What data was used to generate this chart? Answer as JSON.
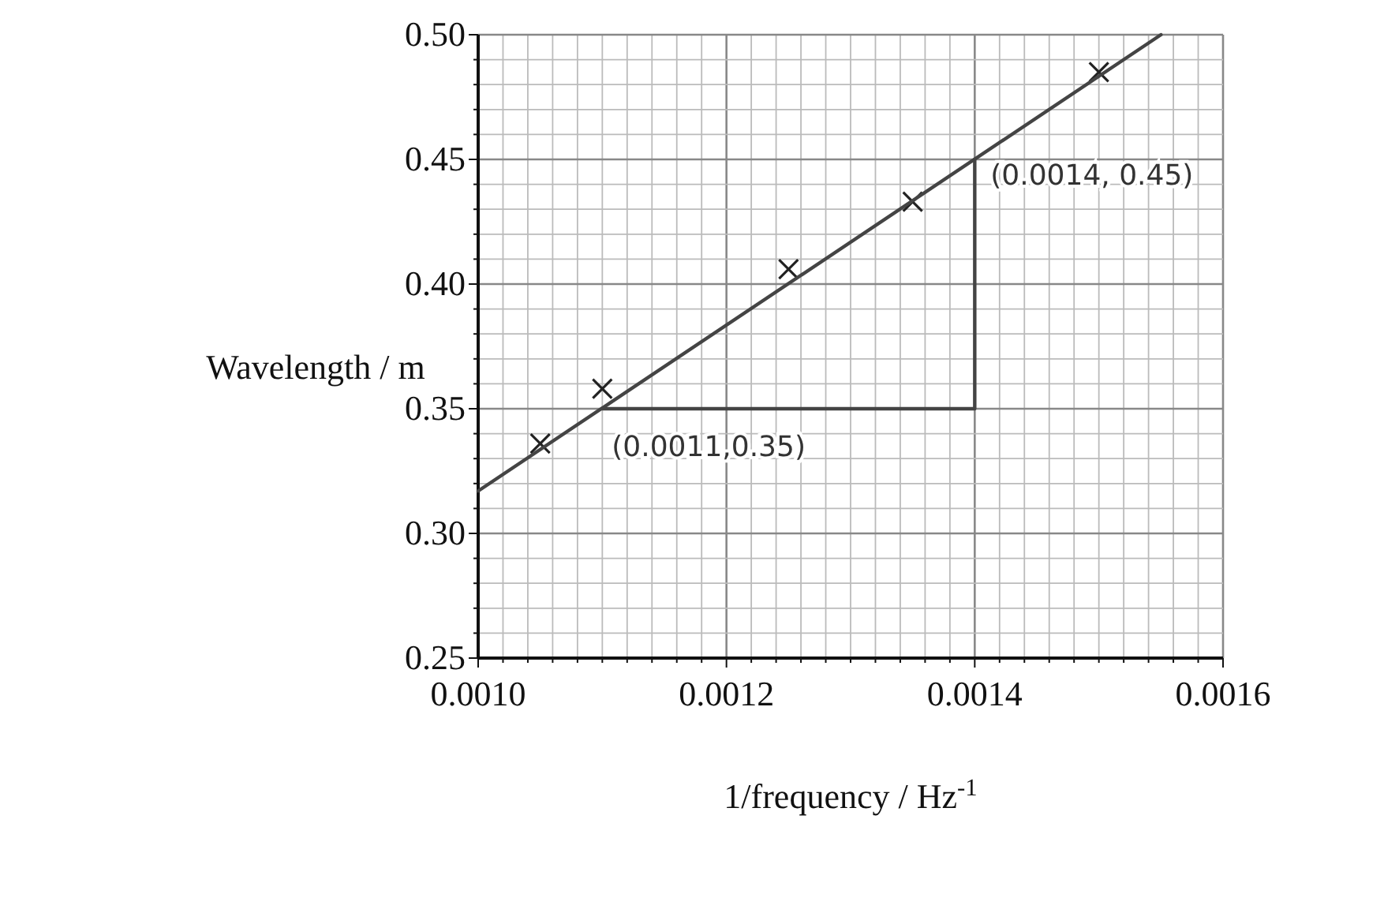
{
  "chart_data": {
    "type": "scatter",
    "xlabel": "1/frequency / Hz$^{-1}$",
    "ylabel": "Wavelength / m",
    "xlim": [
      0.001,
      0.0016
    ],
    "ylim": [
      0.25,
      0.5
    ],
    "xticks": [
      "0.0010",
      {
        "value": 0.00102,
        "label": null
      },
      {
        "value": 0.00104,
        "label": null
      },
      {
        "value": 0.00106,
        "label": null
      },
      {
        "value": 0.00108,
        "label": null
      },
      {
        "value": 0.0011,
        "label": null
      },
      {
        "value": 0.00112,
        "label": null
      },
      {
        "value": 0.00114,
        "label": null
      },
      {
        "value": 0.00116,
        "label": null
      },
      {
        "value": 0.00118,
        "label": null
      },
      {
        "value": 0.0012,
        "label": "0.0012"
      },
      {
        "value": 0.00122,
        "label": null
      },
      {
        "value": 0.00124,
        "label": null
      },
      {
        "value": 0.00126,
        "label": null
      },
      {
        "value": 0.00128,
        "label": null
      },
      {
        "value": 0.0013,
        "label": null
      },
      {
        "value": 0.00132,
        "label": null
      },
      {
        "value": 0.00134,
        "label": null
      },
      {
        "value": 0.00136,
        "label": null
      },
      {
        "value": 0.00138,
        "label": null
      },
      {
        "value": 0.0014,
        "label": "0.0014"
      },
      {
        "value": 0.00142,
        "label": null
      },
      {
        "value": 0.00144,
        "label": null
      },
      {
        "value": 0.00146,
        "label": null
      },
      {
        "value": 0.00148,
        "label": null
      },
      {
        "value": 0.0015,
        "label": null
      },
      {
        "value": 0.00152,
        "label": null
      },
      {
        "value": 0.00154,
        "label": null
      },
      {
        "value": 0.00156,
        "label": null
      },
      {
        "value": 0.00158,
        "label": null
      },
      {
        "value": 0.0016,
        "label": "0.0016"
      }
    ],
    "yticks": [
      {
        "value": 0.25,
        "label": "0.25"
      },
      {
        "value": 0.26,
        "label": null
      },
      {
        "value": 0.27,
        "label": null
      },
      {
        "value": 0.28,
        "label": null
      },
      {
        "value": 0.29,
        "label": null
      },
      {
        "value": 0.3,
        "label": "0.30"
      },
      {
        "value": 0.31,
        "label": null
      },
      {
        "value": 0.32,
        "label": null
      },
      {
        "value": 0.33,
        "label": null
      },
      {
        "value": 0.34,
        "label": null
      },
      {
        "value": 0.35,
        "label": "0.35"
      },
      {
        "value": 0.36,
        "label": null
      },
      {
        "value": 0.37,
        "label": null
      },
      {
        "value": 0.38,
        "label": null
      },
      {
        "value": 0.39,
        "label": null
      },
      {
        "value": 0.4,
        "label": "0.40"
      },
      {
        "value": 0.41,
        "label": null
      },
      {
        "value": 0.42,
        "label": null
      },
      {
        "value": 0.43,
        "label": null
      },
      {
        "value": 0.44,
        "label": null
      },
      {
        "value": 0.45,
        "label": "0.45"
      },
      {
        "value": 0.46,
        "label": null
      },
      {
        "value": 0.47,
        "label": null
      },
      {
        "value": 0.48,
        "label": null
      },
      {
        "value": 0.49,
        "label": null
      },
      {
        "value": 0.5,
        "label": "0.50"
      }
    ],
    "grid": true,
    "series": [
      {
        "marker": "cross",
        "color": "#222222",
        "x": [
          0.00105,
          0.0011,
          0.00125,
          0.00135,
          0.0015
        ],
        "values": [
          0.336,
          0.358,
          0.406,
          0.433,
          0.485
        ]
      },
      {
        "type": "line",
        "marker": "none",
        "line_style": "solid",
        "color": "#444444",
        "x": [
          0.001,
          0.00155
        ],
        "values": [
          0.317,
          0.5
        ]
      },
      {
        "type": "line",
        "marker": "none",
        "line_style": "solid",
        "color": "#444444",
        "x": [
          0.0011,
          0.0014,
          0.0014
        ],
        "values": [
          0.35,
          0.35,
          0.45
        ]
      }
    ],
    "annotations": [
      {
        "text": "(0.0014, 0.45)",
        "x": 0.0014,
        "y": 0.45
      },
      {
        "text": "(0.0011,0.35)",
        "x": 0.0011,
        "y": 0.35
      }
    ]
  }
}
